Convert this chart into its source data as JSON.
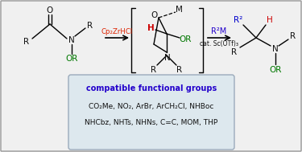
{
  "bg_color": "#f0f0f0",
  "border_color": "#999999",
  "box_bg": "#dde8ee",
  "box_border": "#aabbcc",
  "reagent1": "Cp₂ZrHCl",
  "reagent1_color": "#dd2200",
  "reagent2": "R²M",
  "reagent2_color": "#2200cc",
  "reagent2_sub": "cat. Sc(OTf)₃",
  "box_title": "compatible functional groups",
  "box_title_color": "#2200cc",
  "box_line1": "CO₂Me, NO₂, ArBr, ArCH₂Cl, NHBoc",
  "box_line2": "NHCbz, NHTs, NHNs, C=C, MOM, THP",
  "box_text_color": "#111111",
  "green": "#007700",
  "red": "#cc0000",
  "blue": "#0000cc",
  "black": "#111111"
}
